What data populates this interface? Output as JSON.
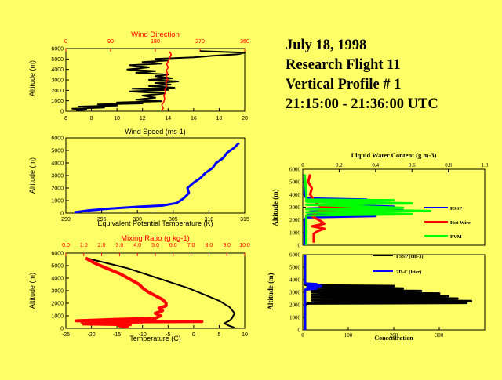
{
  "header": {
    "date": "July 18, 1998",
    "flight": "Research Flight 11",
    "profile": "Vertical Profile # 1",
    "time_range": "21:15:00 - 21:36:00 UTC"
  },
  "colors": {
    "background": "#ffff66",
    "black": "#000000",
    "red": "#ff0000",
    "blue": "#0000ff",
    "green": "#00ff00"
  },
  "chart_data": [
    {
      "id": "wind",
      "type": "line",
      "title": "Wind Direction",
      "xlabel": "Wind Speed (ms-1)",
      "ylabel": "Altitude (m)",
      "xlim": [
        6,
        20
      ],
      "xticks": [
        "6",
        "8",
        "10",
        "12",
        "14",
        "16",
        "18",
        "20"
      ],
      "x2lim": [
        0,
        360
      ],
      "x2ticks": [
        "0",
        "90",
        "180",
        "270",
        "360"
      ],
      "ylim": [
        0,
        6000
      ],
      "yticks": [
        "0",
        "1000",
        "2000",
        "3000",
        "4000",
        "5000",
        "6000"
      ],
      "series": [
        {
          "name": "Wind Speed",
          "color": "#000000",
          "axis": "bottom",
          "points": [
            [
              6.8,
              50
            ],
            [
              7.6,
              150
            ],
            [
              6.5,
              250
            ],
            [
              9.0,
              350
            ],
            [
              7.0,
              450
            ],
            [
              10.0,
              550
            ],
            [
              8.5,
              650
            ],
            [
              12.0,
              750
            ],
            [
              10.0,
              850
            ],
            [
              13.5,
              950
            ],
            [
              11.5,
              1100
            ],
            [
              13.0,
              1300
            ],
            [
              12.0,
              1500
            ],
            [
              13.8,
              1700
            ],
            [
              11.0,
              1900
            ],
            [
              14.0,
              2050
            ],
            [
              11.2,
              2150
            ],
            [
              14.5,
              2250
            ],
            [
              12.5,
              2400
            ],
            [
              14.2,
              2550
            ],
            [
              13.0,
              2700
            ],
            [
              14.8,
              2850
            ],
            [
              12.5,
              3000
            ],
            [
              14.3,
              3150
            ],
            [
              13.0,
              3350
            ],
            [
              14.0,
              3500
            ],
            [
              11.5,
              3700
            ],
            [
              13.0,
              3850
            ],
            [
              10.8,
              4000
            ],
            [
              12.5,
              4200
            ],
            [
              11.0,
              4400
            ],
            [
              13.5,
              4550
            ],
            [
              12.0,
              4700
            ],
            [
              14.0,
              4850
            ],
            [
              13.0,
              5000
            ],
            [
              16.0,
              5150
            ],
            [
              17.5,
              5300
            ],
            [
              19.5,
              5450
            ],
            [
              20.0,
              5600
            ],
            [
              16.5,
              5750
            ]
          ]
        },
        {
          "name": "Wind Direction",
          "color": "#ff0000",
          "axis": "top",
          "points": [
            [
              193,
              50
            ],
            [
              196,
              300
            ],
            [
              193,
              600
            ],
            [
              197,
              900
            ],
            [
              199,
              1200
            ],
            [
              197,
              1500
            ],
            [
              201,
              1800
            ],
            [
              199,
              2100
            ],
            [
              203,
              2400
            ],
            [
              201,
              2700
            ],
            [
              205,
              3000
            ],
            [
              202,
              3300
            ],
            [
              205,
              3600
            ],
            [
              202,
              3900
            ],
            [
              206,
              4200
            ],
            [
              203,
              4500
            ],
            [
              206,
              4800
            ],
            [
              209,
              5100
            ],
            [
              212,
              5400
            ],
            [
              209,
              5700
            ]
          ]
        }
      ]
    },
    {
      "id": "theta_e",
      "type": "line",
      "xlabel": "Equivalent Potential Temperature (K)",
      "ylabel": "Altitude (m)",
      "xlim": [
        290,
        315
      ],
      "xticks": [
        "290",
        "295",
        "300",
        "305",
        "310",
        "315"
      ],
      "ylim": [
        0,
        6000
      ],
      "yticks": [
        "0",
        "1000",
        "2000",
        "3000",
        "4000",
        "5000",
        "6000"
      ],
      "series": [
        {
          "name": "Theta-e",
          "color": "#0000ff",
          "points": [
            [
              291.2,
              60
            ],
            [
              293.0,
              200
            ],
            [
              296.0,
              350
            ],
            [
              300.0,
              500
            ],
            [
              303.5,
              600
            ],
            [
              305.5,
              800
            ],
            [
              306.5,
              1200
            ],
            [
              307.2,
              1600
            ],
            [
              307.0,
              2000
            ],
            [
              307.8,
              2400
            ],
            [
              308.8,
              2800
            ],
            [
              309.5,
              3200
            ],
            [
              310.5,
              3600
            ],
            [
              311.0,
              4000
            ],
            [
              312.0,
              4400
            ],
            [
              312.5,
              4800
            ],
            [
              313.5,
              5200
            ],
            [
              314.2,
              5600
            ]
          ]
        }
      ]
    },
    {
      "id": "temperature",
      "type": "line",
      "title": "Mixing Ratio (g kg-1)",
      "xlabel": "Temperature (C)",
      "ylabel": "Altitude (m)",
      "xlim": [
        -25,
        10
      ],
      "xticks": [
        "-25",
        "-20",
        "-15",
        "-10",
        "-5",
        "0",
        "5",
        "10"
      ],
      "x2lim": [
        0,
        10
      ],
      "x2ticks": [
        "0.0",
        "1.0",
        "2.0",
        "3.0",
        "4.0",
        "5.0",
        "6.0",
        "7.0",
        "8.0",
        "9.0",
        "10.0"
      ],
      "ylim": [
        0,
        6000
      ],
      "yticks": [
        "0",
        "1000",
        "2000",
        "3000",
        "4000",
        "5000",
        "6000"
      ],
      "series": [
        {
          "name": "Temperature",
          "color": "#000000",
          "axis": "bottom",
          "points": [
            [
              -21.0,
              5600
            ],
            [
              -19.0,
              5400
            ],
            [
              -16.0,
              5100
            ],
            [
              -13.0,
              4800
            ],
            [
              -10.0,
              4400
            ],
            [
              -7.0,
              4000
            ],
            [
              -4.0,
              3600
            ],
            [
              -1.0,
              3200
            ],
            [
              2.0,
              2700
            ],
            [
              5.0,
              2200
            ],
            [
              7.0,
              1700
            ],
            [
              8.0,
              1200
            ],
            [
              7.5,
              800
            ],
            [
              7.0,
              600
            ],
            [
              6.0,
              400
            ],
            [
              7.0,
              200
            ],
            [
              8.0,
              50
            ]
          ]
        },
        {
          "name": "Mixing Ratio",
          "color": "#ff0000",
          "axis": "top",
          "points": [
            [
              1.1,
              5600
            ],
            [
              1.6,
              5200
            ],
            [
              2.1,
              4900
            ],
            [
              2.6,
              4600
            ],
            [
              3.1,
              4300
            ],
            [
              3.6,
              3900
            ],
            [
              4.1,
              3500
            ],
            [
              4.3,
              3200
            ],
            [
              4.6,
              2900
            ],
            [
              5.0,
              2600
            ],
            [
              5.4,
              2300
            ],
            [
              5.6,
              2000
            ],
            [
              5.6,
              1800
            ],
            [
              5.2,
              1600
            ],
            [
              5.4,
              1400
            ],
            [
              5.0,
              1200
            ],
            [
              5.3,
              1000
            ],
            [
              5.0,
              800
            ],
            [
              2.6,
              700
            ],
            [
              0.6,
              600
            ],
            [
              7.6,
              550
            ],
            [
              0.9,
              500
            ],
            [
              4.2,
              450
            ],
            [
              1.0,
              350
            ],
            [
              3.6,
              300
            ],
            [
              3.0,
              200
            ],
            [
              3.5,
              100
            ]
          ]
        }
      ]
    },
    {
      "id": "lwc",
      "type": "line",
      "title": "Liquid Water Content (g m-3)",
      "ylabel": "Altitude (m)",
      "xlim": [
        0,
        1.0
      ],
      "xticks": [
        "0",
        "0.2",
        "0.4",
        "0.6",
        "0.8",
        "1.0"
      ],
      "ylim": [
        0,
        6000
      ],
      "yticks": [
        "0",
        "1000",
        "2000",
        "3000",
        "4000",
        "5000",
        "6000"
      ],
      "series": [
        {
          "name": "FSSP",
          "color": "#0000ff",
          "points": [
            [
              0.01,
              5600
            ],
            [
              0.01,
              4000
            ],
            [
              0.02,
              3700
            ],
            [
              0.35,
              3600
            ],
            [
              0.02,
              3500
            ],
            [
              0.42,
              3300
            ],
            [
              0.03,
              3200
            ],
            [
              0.5,
              3050
            ],
            [
              0.03,
              2900
            ],
            [
              0.55,
              2750
            ],
            [
              0.04,
              2650
            ],
            [
              0.45,
              2500
            ],
            [
              0.03,
              2400
            ],
            [
              0.4,
              2300
            ],
            [
              0.02,
              2200
            ],
            [
              0.01,
              2000
            ],
            [
              0.01,
              0
            ]
          ]
        },
        {
          "name": "Hot Wire",
          "color": "#ff0000",
          "points": [
            [
              0.04,
              5600
            ],
            [
              0.03,
              5000
            ],
            [
              0.05,
              4500
            ],
            [
              0.04,
              4000
            ],
            [
              0.06,
              3600
            ],
            [
              0.08,
              3300
            ],
            [
              0.1,
              3000
            ],
            [
              0.5,
              2850
            ],
            [
              0.1,
              2750
            ],
            [
              0.08,
              2600
            ],
            [
              0.05,
              2300
            ],
            [
              0.1,
              1900
            ],
            [
              0.12,
              1700
            ],
            [
              0.05,
              1500
            ],
            [
              0.12,
              1300
            ],
            [
              0.08,
              1100
            ],
            [
              0.06,
              900
            ],
            [
              0.06,
              600
            ],
            [
              0.06,
              200
            ]
          ]
        },
        {
          "name": "PVM",
          "color": "#00ff00",
          "points": [
            [
              0.01,
              5600
            ],
            [
              0.02,
              4000
            ],
            [
              0.02,
              3600
            ],
            [
              0.5,
              3550
            ],
            [
              0.02,
              3450
            ],
            [
              0.6,
              3300
            ],
            [
              0.02,
              3200
            ],
            [
              0.55,
              2950
            ],
            [
              0.02,
              2850
            ],
            [
              0.7,
              2700
            ],
            [
              0.02,
              2600
            ],
            [
              0.6,
              2450
            ],
            [
              0.02,
              2350
            ],
            [
              0.02,
              0
            ]
          ]
        }
      ]
    },
    {
      "id": "concentration",
      "type": "line",
      "xlabel": "Concentration",
      "ylabel": "Altitude (m)",
      "xlim": [
        0,
        400
      ],
      "xticks": [
        "0",
        "100",
        "200",
        "300"
      ],
      "ylim": [
        0,
        6000
      ],
      "yticks": [
        "0",
        "1000",
        "2000",
        "3000",
        "4000",
        "5000",
        "6000"
      ],
      "series": [
        {
          "name": "FSSP (cm-3)",
          "color": "#000000",
          "points": [
            [
              5,
              6000
            ],
            [
              5,
              3600
            ],
            [
              20,
              3550
            ],
            [
              200,
              3500
            ],
            [
              20,
              3450
            ],
            [
              220,
              3300
            ],
            [
              20,
              3200
            ],
            [
              260,
              3100
            ],
            [
              20,
              3000
            ],
            [
              300,
              2900
            ],
            [
              20,
              2800
            ],
            [
              320,
              2700
            ],
            [
              20,
              2600
            ],
            [
              340,
              2500
            ],
            [
              20,
              2400
            ],
            [
              370,
              2300
            ],
            [
              20,
              2200
            ],
            [
              360,
              2150
            ],
            [
              10,
              2100
            ],
            [
              5,
              2000
            ],
            [
              5,
              0
            ]
          ]
        },
        {
          "name": "2D-C (liter)",
          "color": "#0000ff",
          "points": [
            [
              5,
              6000
            ],
            [
              5,
              3700
            ],
            [
              30,
              3650
            ],
            [
              10,
              3600
            ],
            [
              40,
              3500
            ],
            [
              10,
              3400
            ],
            [
              30,
              3300
            ],
            [
              5,
              3200
            ],
            [
              5,
              0
            ]
          ]
        }
      ]
    }
  ]
}
